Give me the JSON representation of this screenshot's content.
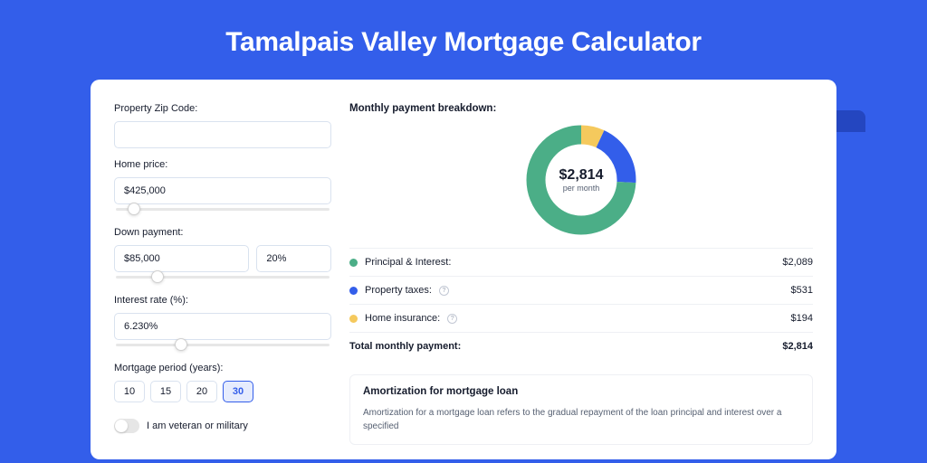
{
  "page": {
    "title": "Tamalpais Valley Mortgage Calculator",
    "bg_color": "#335eea",
    "card_bg": "#ffffff"
  },
  "form": {
    "zip": {
      "label": "Property Zip Code:",
      "value": ""
    },
    "home_price": {
      "label": "Home price:",
      "value": "$425,000",
      "slider_pct": 9
    },
    "down_payment": {
      "label": "Down payment:",
      "amount": "$85,000",
      "pct": "20%",
      "slider_pct": 20
    },
    "interest_rate": {
      "label": "Interest rate (%):",
      "value": "6.230%",
      "slider_pct": 31
    },
    "period": {
      "label": "Mortgage period (years):",
      "options": [
        "10",
        "15",
        "20",
        "30"
      ],
      "selected": "30"
    },
    "veteran": {
      "label": "I am veteran or military",
      "checked": false
    }
  },
  "breakdown": {
    "title": "Monthly payment breakdown:",
    "center_value": "$2,814",
    "center_label": "per month",
    "items": [
      {
        "label": "Principal & Interest:",
        "value": "$2,089",
        "color": "#4bae87",
        "fraction": 0.742,
        "info": false
      },
      {
        "label": "Property taxes:",
        "value": "$531",
        "color": "#335eea",
        "fraction": 0.189,
        "info": true
      },
      {
        "label": "Home insurance:",
        "value": "$194",
        "color": "#f5c95d",
        "fraction": 0.069,
        "info": true
      }
    ],
    "total": {
      "label": "Total monthly payment:",
      "value": "$2,814"
    }
  },
  "amortization": {
    "title": "Amortization for mortgage loan",
    "body": "Amortization for a mortgage loan refers to the gradual repayment of the loan principal and interest over a specified"
  },
  "chart": {
    "type": "donut",
    "stroke_width": 21,
    "radius": 50,
    "bg": "#ffffff"
  }
}
